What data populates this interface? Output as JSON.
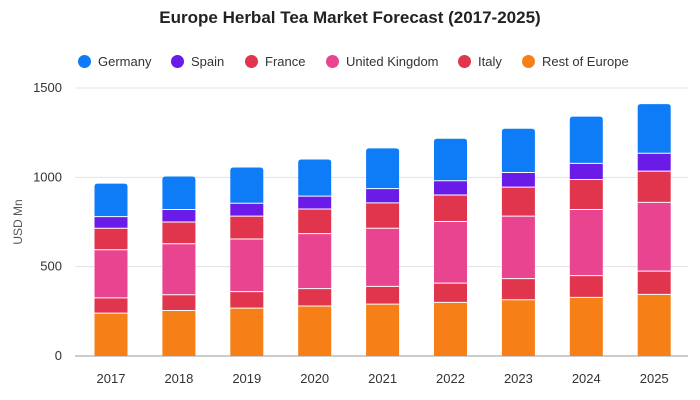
{
  "chart_data": {
    "type": "bar",
    "stacked": true,
    "title": "Europe Herbal Tea Market Forecast (2017-2025)",
    "xlabel": "",
    "ylabel": "USD Mn",
    "ylim": [
      0,
      1500
    ],
    "yticks": [
      "0",
      "500",
      "1000",
      "1500"
    ],
    "grid": true,
    "legend_position": "top",
    "categories": [
      "2017",
      "2018",
      "2019",
      "2020",
      "2021",
      "2022",
      "2023",
      "2024",
      "2025"
    ],
    "series": [
      {
        "name": "Rest of Europe",
        "color": "#f77f17",
        "values": [
          240,
          255,
          268,
          280,
          290,
          300,
          315,
          328,
          345
        ]
      },
      {
        "name": "Italy",
        "color": "#e0354d",
        "values": [
          85,
          88,
          92,
          97,
          100,
          108,
          118,
          122,
          130
        ]
      },
      {
        "name": "United Kingdom",
        "color": "#e8448f",
        "values": [
          270,
          285,
          295,
          308,
          325,
          345,
          350,
          370,
          385
        ]
      },
      {
        "name": "France",
        "color": "#e0354d",
        "values": [
          120,
          122,
          128,
          138,
          142,
          148,
          162,
          168,
          175
        ]
      },
      {
        "name": "Spain",
        "color": "#6a1be8",
        "values": [
          65,
          70,
          72,
          72,
          80,
          80,
          82,
          90,
          100
        ]
      },
      {
        "name": "Germany",
        "color": "#0f7cf7",
        "values": [
          185,
          185,
          200,
          205,
          225,
          235,
          245,
          262,
          275
        ]
      }
    ],
    "legend_order": [
      "Germany",
      "Spain",
      "France",
      "United Kingdom",
      "Italy",
      "Rest of Europe"
    ]
  }
}
